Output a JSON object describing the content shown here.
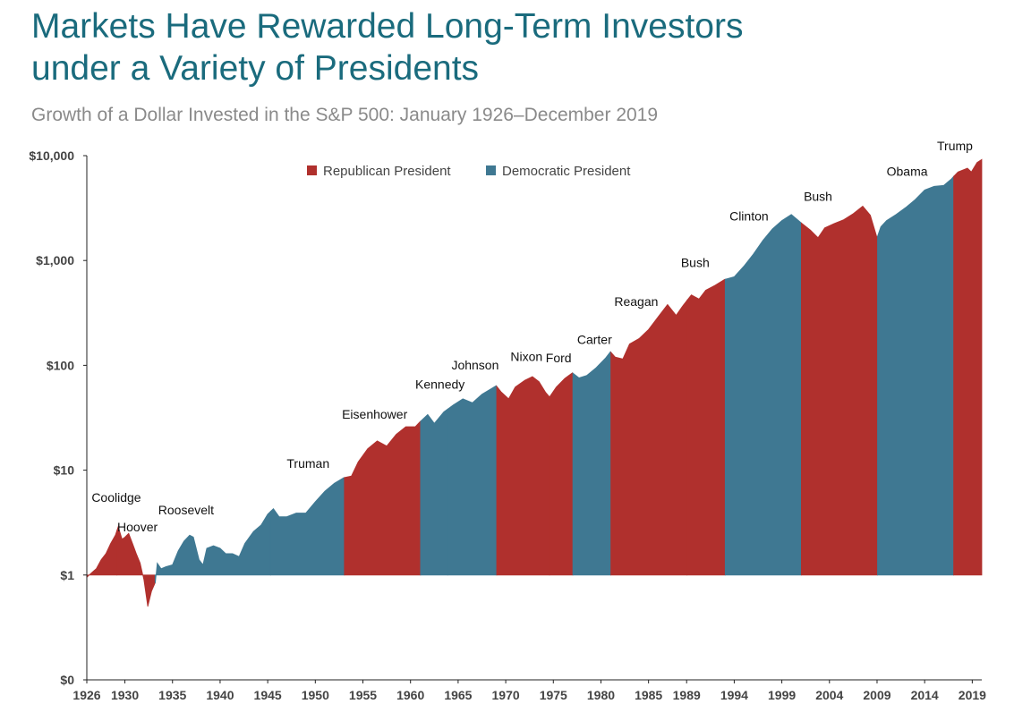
{
  "header": {
    "title_line1": "Markets Have Rewarded Long-Term Investors",
    "title_line2": "under a Variety of Presidents",
    "subtitle": "Growth of a Dollar Invested in the S&P 500: January 1926–December 2019"
  },
  "colors": {
    "republican": "#b0302d",
    "democratic": "#3f7892",
    "title": "#1a6b7d",
    "subtitle": "#8a8a8a"
  },
  "chart_data": {
    "type": "area",
    "title": "Markets Have Rewarded Long-Term Investors under a Variety of Presidents",
    "subtitle": "Growth of a Dollar Invested in the S&P 500: January 1926–December 2019",
    "y_scale": "log",
    "baseline": 1,
    "y_ticks": [
      {
        "value": 0.1,
        "label": "$0"
      },
      {
        "value": 1,
        "label": "$1"
      },
      {
        "value": 10,
        "label": "$10"
      },
      {
        "value": 100,
        "label": "$100"
      },
      {
        "value": 1000,
        "label": "$1,000"
      },
      {
        "value": 10000,
        "label": "$10,000"
      }
    ],
    "x_ticks": [
      1926,
      1930,
      1935,
      1940,
      1945,
      1950,
      1955,
      1960,
      1965,
      1970,
      1975,
      1980,
      1985,
      1989,
      1994,
      1999,
      2004,
      2009,
      2014,
      2019
    ],
    "xlim": [
      1926,
      2020
    ],
    "ylim": [
      0.1,
      10000
    ],
    "grid": false,
    "legend_position": "top-center",
    "legend": [
      {
        "label": "Republican President",
        "party": "republican"
      },
      {
        "label": "Democratic President",
        "party": "democratic"
      }
    ],
    "series": [
      {
        "x": 1926.0,
        "y": 0.95
      },
      {
        "x": 1926.5,
        "y": 1.05
      },
      {
        "x": 1927.0,
        "y": 1.15
      },
      {
        "x": 1927.5,
        "y": 1.4
      },
      {
        "x": 1928.0,
        "y": 1.6
      },
      {
        "x": 1928.5,
        "y": 2.0
      },
      {
        "x": 1929.0,
        "y": 2.4
      },
      {
        "x": 1929.3,
        "y": 2.9
      },
      {
        "x": 1929.7,
        "y": 2.2
      },
      {
        "x": 1930.0,
        "y": 2.3
      },
      {
        "x": 1930.4,
        "y": 2.5
      },
      {
        "x": 1930.8,
        "y": 2.0
      },
      {
        "x": 1931.2,
        "y": 1.6
      },
      {
        "x": 1931.6,
        "y": 1.3
      },
      {
        "x": 1932.0,
        "y": 0.9
      },
      {
        "x": 1932.4,
        "y": 0.5
      },
      {
        "x": 1932.8,
        "y": 0.7
      },
      {
        "x": 1933.2,
        "y": 0.85
      },
      {
        "x": 1933.4,
        "y": 1.3
      },
      {
        "x": 1933.8,
        "y": 1.15
      },
      {
        "x": 1934.3,
        "y": 1.2
      },
      {
        "x": 1935.0,
        "y": 1.25
      },
      {
        "x": 1935.6,
        "y": 1.7
      },
      {
        "x": 1936.2,
        "y": 2.1
      },
      {
        "x": 1936.8,
        "y": 2.4
      },
      {
        "x": 1937.2,
        "y": 2.3
      },
      {
        "x": 1937.8,
        "y": 1.4
      },
      {
        "x": 1938.2,
        "y": 1.25
      },
      {
        "x": 1938.6,
        "y": 1.8
      },
      {
        "x": 1939.3,
        "y": 1.9
      },
      {
        "x": 1940.0,
        "y": 1.8
      },
      {
        "x": 1940.6,
        "y": 1.6
      },
      {
        "x": 1941.3,
        "y": 1.6
      },
      {
        "x": 1942.0,
        "y": 1.5
      },
      {
        "x": 1942.6,
        "y": 2.0
      },
      {
        "x": 1943.5,
        "y": 2.6
      },
      {
        "x": 1944.3,
        "y": 3.0
      },
      {
        "x": 1945.0,
        "y": 3.8
      },
      {
        "x": 1945.6,
        "y": 4.3
      },
      {
        "x": 1946.2,
        "y": 3.6
      },
      {
        "x": 1947.0,
        "y": 3.6
      },
      {
        "x": 1948.0,
        "y": 3.9
      },
      {
        "x": 1949.0,
        "y": 3.9
      },
      {
        "x": 1950.0,
        "y": 5.0
      },
      {
        "x": 1951.0,
        "y": 6.3
      },
      {
        "x": 1952.0,
        "y": 7.5
      },
      {
        "x": 1953.0,
        "y": 8.5
      },
      {
        "x": 1953.8,
        "y": 8.8
      },
      {
        "x": 1954.5,
        "y": 12
      },
      {
        "x": 1955.5,
        "y": 16
      },
      {
        "x": 1956.5,
        "y": 19
      },
      {
        "x": 1957.5,
        "y": 17
      },
      {
        "x": 1958.5,
        "y": 22
      },
      {
        "x": 1959.5,
        "y": 26
      },
      {
        "x": 1960.5,
        "y": 26
      },
      {
        "x": 1961.0,
        "y": 29
      },
      {
        "x": 1961.8,
        "y": 34
      },
      {
        "x": 1962.5,
        "y": 28
      },
      {
        "x": 1963.5,
        "y": 36
      },
      {
        "x": 1964.5,
        "y": 42
      },
      {
        "x": 1965.5,
        "y": 48
      },
      {
        "x": 1966.5,
        "y": 44
      },
      {
        "x": 1967.5,
        "y": 53
      },
      {
        "x": 1968.5,
        "y": 60
      },
      {
        "x": 1969.0,
        "y": 64
      },
      {
        "x": 1969.5,
        "y": 56
      },
      {
        "x": 1970.3,
        "y": 48
      },
      {
        "x": 1971.0,
        "y": 62
      },
      {
        "x": 1972.0,
        "y": 72
      },
      {
        "x": 1972.8,
        "y": 78
      },
      {
        "x": 1973.5,
        "y": 70
      },
      {
        "x": 1974.2,
        "y": 55
      },
      {
        "x": 1974.6,
        "y": 50
      },
      {
        "x": 1975.3,
        "y": 62
      },
      {
        "x": 1976.2,
        "y": 75
      },
      {
        "x": 1977.0,
        "y": 85
      },
      {
        "x": 1977.7,
        "y": 76
      },
      {
        "x": 1978.5,
        "y": 80
      },
      {
        "x": 1979.5,
        "y": 95
      },
      {
        "x": 1980.5,
        "y": 118
      },
      {
        "x": 1981.0,
        "y": 135
      },
      {
        "x": 1981.5,
        "y": 120
      },
      {
        "x": 1982.3,
        "y": 115
      },
      {
        "x": 1983.0,
        "y": 160
      },
      {
        "x": 1984.0,
        "y": 180
      },
      {
        "x": 1985.0,
        "y": 220
      },
      {
        "x": 1986.0,
        "y": 290
      },
      {
        "x": 1987.0,
        "y": 380
      },
      {
        "x": 1987.9,
        "y": 300
      },
      {
        "x": 1988.5,
        "y": 360
      },
      {
        "x": 1989.5,
        "y": 470
      },
      {
        "x": 1990.3,
        "y": 430
      },
      {
        "x": 1991.0,
        "y": 520
      },
      {
        "x": 1992.0,
        "y": 580
      },
      {
        "x": 1993.0,
        "y": 660
      },
      {
        "x": 1994.0,
        "y": 700
      },
      {
        "x": 1995.0,
        "y": 880
      },
      {
        "x": 1996.0,
        "y": 1150
      },
      {
        "x": 1997.0,
        "y": 1550
      },
      {
        "x": 1998.0,
        "y": 2000
      },
      {
        "x": 1999.0,
        "y": 2400
      },
      {
        "x": 2000.0,
        "y": 2750
      },
      {
        "x": 2001.0,
        "y": 2300
      },
      {
        "x": 2002.0,
        "y": 1950
      },
      {
        "x": 2002.8,
        "y": 1650
      },
      {
        "x": 2003.5,
        "y": 2050
      },
      {
        "x": 2004.5,
        "y": 2250
      },
      {
        "x": 2005.5,
        "y": 2450
      },
      {
        "x": 2006.5,
        "y": 2800
      },
      {
        "x": 2007.5,
        "y": 3300
      },
      {
        "x": 2008.3,
        "y": 2700
      },
      {
        "x": 2009.0,
        "y": 1650
      },
      {
        "x": 2009.4,
        "y": 2100
      },
      {
        "x": 2010.0,
        "y": 2400
      },
      {
        "x": 2011.0,
        "y": 2750
      },
      {
        "x": 2012.0,
        "y": 3200
      },
      {
        "x": 2013.0,
        "y": 3800
      },
      {
        "x": 2014.0,
        "y": 4700
      },
      {
        "x": 2015.0,
        "y": 5100
      },
      {
        "x": 2016.0,
        "y": 5200
      },
      {
        "x": 2016.8,
        "y": 6000
      },
      {
        "x": 2017.5,
        "y": 7000
      },
      {
        "x": 2018.5,
        "y": 7600
      },
      {
        "x": 2018.9,
        "y": 7000
      },
      {
        "x": 2019.5,
        "y": 8600
      },
      {
        "x": 2020.0,
        "y": 9200
      }
    ],
    "terms": [
      {
        "president": "Coolidge",
        "party": "republican",
        "start": 1926.0,
        "end": 1929.17
      },
      {
        "president": "Hoover",
        "party": "republican",
        "start": 1929.17,
        "end": 1933.17
      },
      {
        "president": "Roosevelt",
        "party": "democratic",
        "start": 1933.17,
        "end": 1945.3
      },
      {
        "president": "Truman",
        "party": "democratic",
        "start": 1945.3,
        "end": 1953.05
      },
      {
        "president": "Eisenhower",
        "party": "republican",
        "start": 1953.05,
        "end": 1961.05
      },
      {
        "president": "Kennedy",
        "party": "democratic",
        "start": 1961.05,
        "end": 1963.9
      },
      {
        "president": "Johnson",
        "party": "democratic",
        "start": 1963.9,
        "end": 1969.05
      },
      {
        "president": "Nixon",
        "party": "republican",
        "start": 1969.05,
        "end": 1974.6
      },
      {
        "president": "Ford",
        "party": "republican",
        "start": 1974.6,
        "end": 1977.05
      },
      {
        "president": "Carter",
        "party": "democratic",
        "start": 1977.05,
        "end": 1981.05
      },
      {
        "president": "Reagan",
        "party": "republican",
        "start": 1981.05,
        "end": 1989.05
      },
      {
        "president": "Bush",
        "party": "republican",
        "start": 1989.05,
        "end": 1993.05
      },
      {
        "president": "Clinton",
        "party": "democratic",
        "start": 1993.05,
        "end": 2001.05
      },
      {
        "president": "Bush",
        "party": "republican",
        "start": 2001.05,
        "end": 2009.05
      },
      {
        "president": "Obama",
        "party": "democratic",
        "start": 2009.05,
        "end": 2017.05
      },
      {
        "president": "Trump",
        "party": "republican",
        "start": 2017.05,
        "end": 2020.0
      }
    ],
    "annotations": [
      {
        "text": "Coolidge",
        "x": 1926.5,
        "y": 5.0,
        "anchor": "start"
      },
      {
        "text": "Hoover",
        "x": 1929.2,
        "y": 2.6,
        "anchor": "start"
      },
      {
        "text": "Roosevelt",
        "x": 1933.5,
        "y": 3.8,
        "anchor": "start"
      },
      {
        "text": "Truman",
        "x": 1947.0,
        "y": 10.5,
        "anchor": "start"
      },
      {
        "text": "Eisenhower",
        "x": 1952.8,
        "y": 31,
        "anchor": "start"
      },
      {
        "text": "Kennedy",
        "x": 1960.5,
        "y": 60,
        "anchor": "start"
      },
      {
        "text": "Johnson",
        "x": 1964.3,
        "y": 91,
        "anchor": "start"
      },
      {
        "text": "Nixon",
        "x": 1970.5,
        "y": 110,
        "anchor": "start"
      },
      {
        "text": "Ford",
        "x": 1974.2,
        "y": 107,
        "anchor": "start"
      },
      {
        "text": "Carter",
        "x": 1977.5,
        "y": 160,
        "anchor": "start"
      },
      {
        "text": "Reagan",
        "x": 1981.4,
        "y": 370,
        "anchor": "start"
      },
      {
        "text": "Bush",
        "x": 1988.4,
        "y": 870,
        "anchor": "start"
      },
      {
        "text": "Clinton",
        "x": 1993.5,
        "y": 2400,
        "anchor": "start"
      },
      {
        "text": "Bush",
        "x": 2001.3,
        "y": 3700,
        "anchor": "start"
      },
      {
        "text": "Obama",
        "x": 2010.0,
        "y": 6400,
        "anchor": "start"
      },
      {
        "text": "Trump",
        "x": 2015.3,
        "y": 11200,
        "anchor": "start"
      }
    ]
  }
}
